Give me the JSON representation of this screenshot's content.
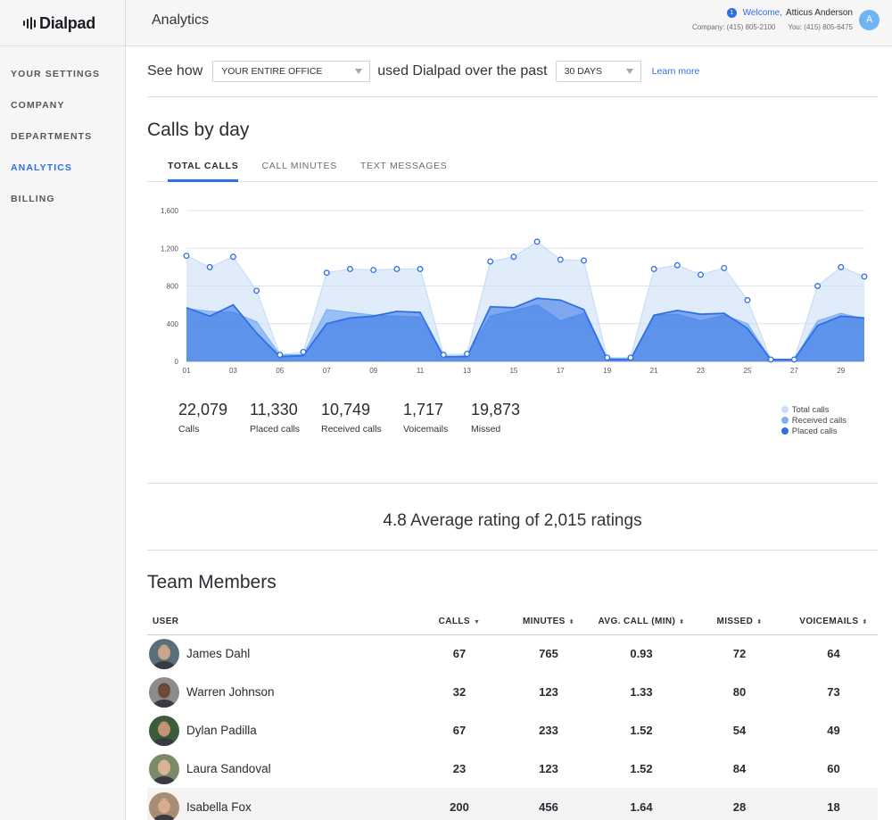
{
  "app": {
    "logo": "Dialpad",
    "page_title": "Analytics"
  },
  "header": {
    "notification_count": "1",
    "welcome_word": "Welcome,",
    "user_name": "Atticus Anderson",
    "company_phone": "Company: (415) 805-2100",
    "user_phone": "You: (415) 805-6475",
    "avatar_initial": "A"
  },
  "sidebar": {
    "items": [
      {
        "label": "YOUR SETTINGS",
        "active": false
      },
      {
        "label": "COMPANY",
        "active": false
      },
      {
        "label": "DEPARTMENTS",
        "active": false
      },
      {
        "label": "ANALYTICS",
        "active": true
      },
      {
        "label": "BILLING",
        "active": false
      }
    ]
  },
  "filter": {
    "prefix": "See how",
    "scope_value": "YOUR ENTIRE OFFICE",
    "middle": "used Dialpad over the past",
    "period_value": "30 DAYS",
    "learn_more": "Learn more"
  },
  "calls_section": {
    "title": "Calls by day",
    "tabs": [
      "TOTAL CALLS",
      "CALL MINUTES",
      "TEXT MESSAGES"
    ],
    "active_tab": 0
  },
  "chart_data": {
    "type": "area",
    "x": [
      "01",
      "02",
      "03",
      "04",
      "05",
      "06",
      "07",
      "08",
      "09",
      "10",
      "11",
      "12",
      "13",
      "14",
      "15",
      "16",
      "17",
      "18",
      "19",
      "20",
      "21",
      "22",
      "23",
      "24",
      "25",
      "26",
      "27",
      "28",
      "29",
      "30"
    ],
    "x_tick_labels": [
      "01",
      "03",
      "05",
      "07",
      "09",
      "11",
      "13",
      "15",
      "17",
      "19",
      "21",
      "23",
      "25",
      "27",
      "29"
    ],
    "ylim": [
      0,
      1600
    ],
    "y_ticks": [
      "0",
      "400",
      "800",
      "1,200",
      "1,600"
    ],
    "grid": true,
    "series": [
      {
        "name": "Total calls",
        "color": "#c9dcf8",
        "values": [
          1120,
          1000,
          1110,
          750,
          70,
          100,
          940,
          980,
          970,
          980,
          980,
          70,
          80,
          1060,
          1110,
          1270,
          1080,
          1070,
          40,
          40,
          980,
          1020,
          920,
          990,
          650,
          20,
          20,
          800,
          1000,
          900
        ]
      },
      {
        "name": "Received calls",
        "color": "#7fb0f2",
        "values": [
          560,
          530,
          520,
          420,
          70,
          70,
          550,
          520,
          490,
          480,
          470,
          50,
          60,
          480,
          540,
          600,
          430,
          510,
          30,
          30,
          490,
          500,
          430,
          490,
          400,
          20,
          20,
          430,
          510,
          450
        ]
      },
      {
        "name": "Placed calls",
        "color": "#2f6fe6",
        "values": [
          570,
          480,
          600,
          300,
          50,
          60,
          400,
          460,
          480,
          530,
          520,
          50,
          50,
          580,
          570,
          670,
          650,
          550,
          20,
          20,
          490,
          540,
          500,
          510,
          350,
          20,
          20,
          380,
          480,
          460
        ]
      }
    ],
    "legend_placement": "bottom-right"
  },
  "stats": [
    {
      "value": "22,079",
      "label": "Calls"
    },
    {
      "value": "11,330",
      "label": "Placed calls"
    },
    {
      "value": "10,749",
      "label": "Received calls"
    },
    {
      "value": "1,717",
      "label": "Voicemails"
    },
    {
      "value": "19,873",
      "label": "Missed"
    }
  ],
  "rating": {
    "score": "4.8",
    "text": "Average rating of 2,015 ratings"
  },
  "team": {
    "title": "Team Members",
    "columns": [
      "USER",
      "CALLS",
      "MINUTES",
      "AVG. CALL (MIN)",
      "MISSED",
      "VOICEMAILS"
    ],
    "sort_icons": [
      "",
      "▼",
      "⬍",
      "⬍",
      "⬍",
      "⬍"
    ],
    "rows": [
      {
        "name": "James Dahl",
        "calls": "67",
        "minutes": "765",
        "avg": "0.93",
        "missed": "72",
        "voicemails": "64",
        "skin": "#c9a58a",
        "hair": "#4a3526",
        "bg": "#5a6f7c"
      },
      {
        "name": "Warren Johnson",
        "calls": "32",
        "minutes": "123",
        "avg": "1.33",
        "missed": "80",
        "voicemails": "73",
        "skin": "#6b4a36",
        "hair": "#2a1d15",
        "bg": "#8c8c8c"
      },
      {
        "name": "Dylan Padilla",
        "calls": "67",
        "minutes": "233",
        "avg": "1.52",
        "missed": "54",
        "voicemails": "49",
        "skin": "#c49476",
        "hair": "#2b1f17",
        "bg": "#3d5c3a"
      },
      {
        "name": "Laura Sandoval",
        "calls": "23",
        "minutes": "123",
        "avg": "1.52",
        "missed": "84",
        "voicemails": "60",
        "skin": "#d9b497",
        "hair": "#b78a58",
        "bg": "#7b8b6a"
      },
      {
        "name": "Isabella Fox",
        "calls": "200",
        "minutes": "456",
        "avg": "1.64",
        "missed": "28",
        "voicemails": "18",
        "skin": "#d8ad8f",
        "hair": "#5a3a24",
        "bg": "#a68d74",
        "highlight": true
      }
    ]
  }
}
